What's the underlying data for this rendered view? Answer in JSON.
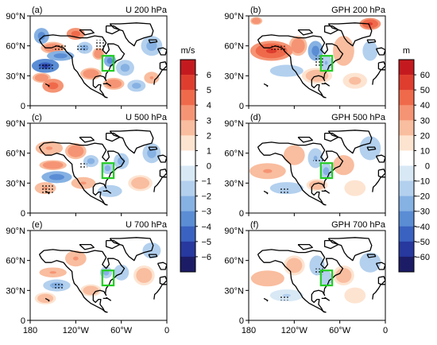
{
  "chart_data": {
    "type": "heatmap",
    "panels": [
      {
        "label": "(a)",
        "title": "U 200 hPa",
        "variable": "U",
        "level": "200 hPa",
        "blobs": [
          [
            -165,
            70,
            10,
            8,
            -3
          ],
          [
            -150,
            58,
            16,
            6,
            3
          ],
          [
            -140,
            50,
            18,
            5,
            -3
          ],
          [
            -160,
            40,
            18,
            7,
            -5
          ],
          [
            -165,
            28,
            12,
            5,
            3
          ],
          [
            -150,
            20,
            14,
            7,
            4
          ],
          [
            -120,
            72,
            12,
            6,
            4
          ],
          [
            -108,
            58,
            10,
            6,
            -2
          ],
          [
            -90,
            52,
            8,
            6,
            3
          ],
          [
            -75,
            45,
            8,
            6,
            -3
          ],
          [
            -55,
            38,
            12,
            8,
            -2
          ],
          [
            -100,
            32,
            14,
            6,
            3
          ],
          [
            -70,
            22,
            14,
            6,
            3
          ],
          [
            -40,
            20,
            12,
            6,
            -2
          ],
          [
            -20,
            60,
            14,
            10,
            -2
          ],
          [
            -20,
            28,
            10,
            6,
            2
          ]
        ],
        "stipple": [
          [
            -168,
            42,
            -150,
            35
          ],
          [
            -150,
            62,
            -132,
            55
          ],
          [
            -120,
            60,
            -105,
            54
          ],
          [
            -95,
            66,
            -82,
            56
          ]
        ]
      },
      {
        "label": "(b)",
        "title": "GPH 200 hPa",
        "variable": "GPH",
        "level": "200 hPa",
        "blobs": [
          [
            -150,
            55,
            28,
            10,
            45
          ],
          [
            -115,
            60,
            12,
            10,
            30
          ],
          [
            -92,
            55,
            10,
            10,
            -30
          ],
          [
            -78,
            43,
            8,
            8,
            -15
          ],
          [
            -55,
            55,
            14,
            15,
            18
          ],
          [
            -20,
            82,
            14,
            6,
            50
          ],
          [
            -20,
            55,
            10,
            10,
            -10
          ],
          [
            -130,
            35,
            22,
            6,
            -10
          ],
          [
            -90,
            30,
            20,
            8,
            10
          ],
          [
            -40,
            25,
            16,
            8,
            8
          ],
          [
            -170,
            85,
            8,
            4,
            30
          ]
        ],
        "stipple": [
          [
            -150,
            60,
            -130,
            54
          ],
          [
            -92,
            50,
            -82,
            40
          ]
        ]
      },
      {
        "label": "(c)",
        "title": "U 500 hPa",
        "variable": "U",
        "level": "500 hPa",
        "blobs": [
          [
            -155,
            65,
            18,
            7,
            2
          ],
          [
            -150,
            48,
            18,
            5,
            3
          ],
          [
            -145,
            36,
            20,
            6,
            -3
          ],
          [
            -160,
            25,
            14,
            6,
            2
          ],
          [
            -120,
            62,
            14,
            8,
            3
          ],
          [
            -100,
            52,
            10,
            6,
            -2
          ],
          [
            -78,
            45,
            8,
            6,
            -2
          ],
          [
            -60,
            52,
            10,
            8,
            -2
          ],
          [
            -110,
            30,
            16,
            6,
            2
          ],
          [
            -75,
            22,
            16,
            6,
            -1
          ],
          [
            -35,
            30,
            16,
            8,
            1
          ],
          [
            -20,
            60,
            12,
            10,
            -2
          ]
        ],
        "stipple": [
          [
            -165,
            28,
            -150,
            20
          ],
          [
            -115,
            50,
            -105,
            44
          ]
        ]
      },
      {
        "label": "(d)",
        "title": "GPH 500 hPa",
        "variable": "GPH",
        "level": "500 hPa",
        "blobs": [
          [
            -155,
            42,
            24,
            8,
            20
          ],
          [
            -120,
            58,
            14,
            10,
            15
          ],
          [
            -92,
            55,
            10,
            10,
            -15
          ],
          [
            -78,
            42,
            8,
            8,
            -20
          ],
          [
            -55,
            48,
            14,
            10,
            15
          ],
          [
            -20,
            65,
            14,
            12,
            -10
          ],
          [
            -130,
            25,
            22,
            6,
            -10
          ],
          [
            -90,
            28,
            14,
            6,
            10
          ],
          [
            -40,
            25,
            14,
            8,
            5
          ]
        ],
        "stipple": [
          [
            -140,
            25,
            -128,
            20
          ],
          [
            -95,
            55,
            -82,
            50
          ]
        ]
      },
      {
        "label": "(e)",
        "title": "U 700 hPa",
        "variable": "U",
        "level": "700 hPa",
        "blobs": [
          [
            -150,
            48,
            18,
            5,
            2
          ],
          [
            -145,
            35,
            18,
            6,
            -2
          ],
          [
            -160,
            22,
            14,
            6,
            1
          ],
          [
            -120,
            62,
            14,
            8,
            2
          ],
          [
            -80,
            48,
            8,
            6,
            -2
          ],
          [
            -60,
            48,
            10,
            8,
            -1
          ],
          [
            -100,
            30,
            14,
            6,
            1
          ],
          [
            -30,
            45,
            14,
            10,
            1
          ],
          [
            -20,
            70,
            12,
            8,
            -1
          ]
        ],
        "stipple": [
          [
            -150,
            38,
            -135,
            32
          ]
        ]
      },
      {
        "label": "(f)",
        "title": "GPH 700 hPa",
        "variable": "GPH",
        "level": "700 hPa",
        "blobs": [
          [
            -155,
            42,
            22,
            8,
            15
          ],
          [
            -120,
            55,
            14,
            10,
            10
          ],
          [
            -90,
            55,
            10,
            10,
            -10
          ],
          [
            -78,
            42,
            8,
            8,
            -10
          ],
          [
            -55,
            45,
            14,
            10,
            10
          ],
          [
            -20,
            58,
            14,
            10,
            -10
          ],
          [
            -130,
            25,
            22,
            6,
            -5
          ],
          [
            -40,
            25,
            14,
            8,
            5
          ]
        ],
        "stipple": [
          [
            -140,
            25,
            -128,
            20
          ],
          [
            -92,
            52,
            -82,
            46
          ]
        ]
      }
    ],
    "x_ticks": [
      {
        "value": -180,
        "label": "180"
      },
      {
        "value": -120,
        "label": "120°W"
      },
      {
        "value": -60,
        "label": "60°W"
      },
      {
        "value": 0,
        "label": "0"
      }
    ],
    "y_ticks": [
      {
        "value": 0,
        "label": "0"
      },
      {
        "value": 30,
        "label": "30°N"
      },
      {
        "value": 60,
        "label": "60°N"
      },
      {
        "value": 90,
        "label": "90°N"
      }
    ],
    "xlim": [
      -180,
      0
    ],
    "ylim": [
      0,
      90
    ],
    "box": {
      "lon": [
        -85,
        -70
      ],
      "lat": [
        35,
        50
      ],
      "color": "#22cc22"
    },
    "colorbars": [
      {
        "unit": "m/s",
        "labels": [
          "6",
          "5",
          "4",
          "3",
          "2",
          "1",
          "0",
          "−1",
          "−2",
          "−3",
          "−4",
          "−5",
          "−6"
        ]
      },
      {
        "unit": "m",
        "labels": [
          "60",
          "50",
          "40",
          "30",
          "20",
          "10",
          "0",
          "−10",
          "−20",
          "−30",
          "−40",
          "−50",
          "−60"
        ]
      }
    ],
    "palette": [
      "#c41a1f",
      "#df3e2f",
      "#ef6a4b",
      "#f59474",
      "#f9bd9f",
      "#fde4d1",
      "#ffffff",
      "#d8e8f5",
      "#b3d0ee",
      "#86b1e3",
      "#5a8dd4",
      "#3a62c0",
      "#27389e",
      "#1c1c66"
    ]
  }
}
